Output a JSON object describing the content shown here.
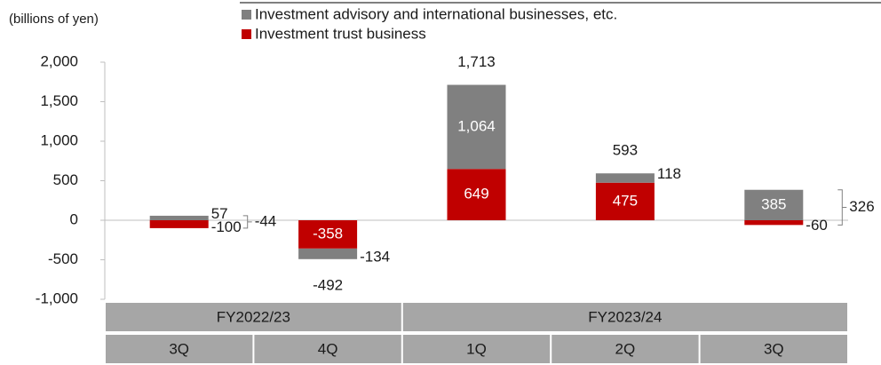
{
  "chart_data": {
    "type": "stacked_bar",
    "unit_label": "(billions of yen)",
    "groups": [
      {
        "label": "FY2022/23",
        "categories": [
          "3Q",
          "4Q"
        ]
      },
      {
        "label": "FY2023/24",
        "categories": [
          "1Q",
          "2Q",
          "3Q"
        ]
      }
    ],
    "series": [
      {
        "name": "Investment advisory and international businesses, etc.",
        "color": "#808080",
        "values": [
          57,
          -134,
          1064,
          118,
          385
        ],
        "value_labels": [
          "57",
          "-134",
          "1,064",
          "118",
          "385"
        ]
      },
      {
        "name": "Investment trust business",
        "color": "#c00000",
        "values": [
          -100,
          -358,
          649,
          475,
          -60
        ],
        "value_labels": [
          "-100",
          "-358",
          "649",
          "475",
          "-60"
        ]
      }
    ],
    "totals": [
      -44,
      -492,
      1713,
      593,
      326
    ],
    "totals_labels": [
      "-44",
      "-492",
      "1,713",
      "593",
      "326"
    ],
    "ylim": [
      -1000,
      2000
    ],
    "yticks": [
      {
        "value": -1000,
        "label": "-1,000"
      },
      -500,
      0,
      500,
      {
        "value": 1000,
        "label": "1,000"
      },
      {
        "value": 1500,
        "label": "1,500"
      },
      {
        "value": 2000,
        "label": "2,000"
      }
    ]
  }
}
